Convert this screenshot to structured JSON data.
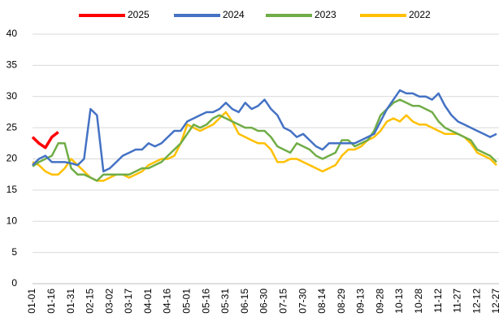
{
  "chart_data": {
    "type": "line",
    "categories": [
      "01-01",
      null,
      null,
      "01-16",
      null,
      null,
      "01-31",
      null,
      null,
      "02-15",
      null,
      null,
      "03-02",
      null,
      null,
      "03-17",
      null,
      null,
      "04-01",
      null,
      null,
      "04-16",
      null,
      null,
      "05-01",
      null,
      null,
      "05-16",
      null,
      null,
      "05-31",
      null,
      null,
      "06-15",
      null,
      null,
      "06-30",
      null,
      null,
      "07-15",
      null,
      null,
      "07-30",
      null,
      null,
      "08-14",
      null,
      null,
      "08-29",
      null,
      null,
      "09-13",
      null,
      null,
      "09-28",
      null,
      null,
      "10-13",
      null,
      null,
      "10-28",
      null,
      null,
      "11-12",
      null,
      null,
      "11-27",
      null,
      null,
      "12-12",
      null,
      null,
      "12-27"
    ],
    "series": [
      {
        "name": "2025",
        "color": "#ff0000",
        "values": [
          23.5,
          22.5,
          21.8,
          23.5,
          24.3,
          null,
          null,
          null,
          null,
          null,
          null,
          null,
          null,
          null,
          null,
          null,
          null,
          null,
          null,
          null,
          null,
          null,
          null,
          null,
          null,
          null,
          null,
          null,
          null,
          null,
          null,
          null,
          null,
          null,
          null,
          null,
          null,
          null,
          null,
          null,
          null,
          null,
          null,
          null,
          null,
          null,
          null,
          null,
          null,
          null,
          null,
          null,
          null,
          null,
          null,
          null,
          null,
          null,
          null,
          null,
          null,
          null,
          null,
          null,
          null,
          null,
          null,
          null,
          null,
          null,
          null,
          null,
          null
        ]
      },
      {
        "name": "2024",
        "color": "#4472c4",
        "values": [
          19,
          20,
          20.5,
          19.5,
          19.5,
          19.5,
          19.3,
          19,
          20,
          28,
          27,
          18,
          18.5,
          19.5,
          20.5,
          21,
          21.5,
          21.5,
          22.5,
          22,
          22.5,
          23.5,
          24.5,
          24.5,
          26,
          26.5,
          27,
          27.5,
          27.5,
          28,
          29,
          28,
          27.5,
          29,
          28,
          28.5,
          29.5,
          28,
          27,
          25,
          24.5,
          23.5,
          24,
          23,
          22,
          21.5,
          22.5,
          22.5,
          22.5,
          22.5,
          22.5,
          23,
          23.5,
          24,
          26,
          28,
          29.5,
          31,
          30.5,
          30.5,
          30,
          30,
          29.5,
          30.5,
          28.5,
          27,
          26,
          25.5,
          25,
          24.5,
          24,
          23.5,
          24
        ]
      },
      {
        "name": "2023",
        "color": "#70ad47",
        "values": [
          18.8,
          19.5,
          20,
          20.5,
          22.5,
          22.5,
          18.5,
          17.5,
          17.5,
          17,
          16.5,
          17.5,
          17.5,
          17.5,
          17.5,
          17.5,
          18,
          18.5,
          18.5,
          19,
          19.5,
          20.5,
          21.5,
          22.5,
          24,
          25.5,
          25,
          25.5,
          26.5,
          27,
          26.5,
          26,
          25.5,
          25,
          25,
          24.5,
          24.5,
          23.5,
          22,
          21.5,
          21,
          22.5,
          22,
          21.5,
          20.5,
          20,
          20.5,
          21,
          23,
          23,
          22,
          22.5,
          23,
          24.5,
          27,
          28,
          29,
          29.5,
          29,
          28.5,
          28.5,
          28,
          27.5,
          26,
          25,
          24.5,
          24,
          23.5,
          23,
          21.5,
          21,
          20.5,
          19.5
        ]
      },
      {
        "name": "2022",
        "color": "#ffc000",
        "values": [
          19.5,
          19,
          18,
          17.5,
          17.5,
          18.5,
          20,
          19,
          18,
          17,
          16.5,
          16.5,
          17,
          17.5,
          17.5,
          17,
          17.5,
          18,
          19,
          19.5,
          20,
          20,
          20.5,
          22.5,
          25.5,
          25,
          24.5,
          25,
          25.5,
          26.5,
          27.5,
          26,
          24,
          23.5,
          23,
          22.5,
          22.5,
          21.5,
          19.5,
          19.5,
          20,
          20,
          19.5,
          19,
          18.5,
          18,
          18.5,
          19,
          20.5,
          21.5,
          21.5,
          22,
          23,
          23.5,
          24.5,
          26,
          26.5,
          26,
          27,
          26,
          25.5,
          25.5,
          25,
          24.5,
          24,
          24,
          24,
          23.5,
          22.5,
          21,
          20.5,
          20,
          19
        ]
      }
    ],
    "ylim": [
      0,
      40
    ],
    "yticks": [
      0,
      5,
      10,
      15,
      20,
      25,
      30,
      35,
      40
    ],
    "grid": true,
    "legend": "top"
  }
}
